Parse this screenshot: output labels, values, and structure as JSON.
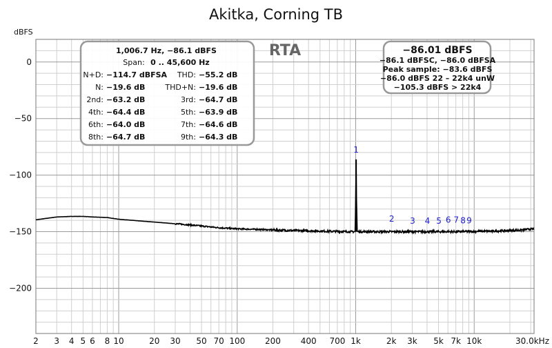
{
  "chart_data": {
    "type": "line",
    "title": "Akitka, Corning TB",
    "ylabel_unit": "dBFS",
    "x_scale": "log",
    "xlim": [
      2,
      32000
    ],
    "ylim": [
      -240,
      20
    ],
    "grid": true,
    "x_ticks": [
      {
        "value": 2,
        "label": "2"
      },
      {
        "value": 3,
        "label": "3"
      },
      {
        "value": 4,
        "label": "4"
      },
      {
        "value": 5,
        "label": "5"
      },
      {
        "value": 6,
        "label": "6"
      },
      {
        "value": 8,
        "label": "8"
      },
      {
        "value": 10,
        "label": "10"
      },
      {
        "value": 20,
        "label": "20"
      },
      {
        "value": 30,
        "label": "30"
      },
      {
        "value": 50,
        "label": "50"
      },
      {
        "value": 70,
        "label": "70"
      },
      {
        "value": 100,
        "label": "100"
      },
      {
        "value": 200,
        "label": "200"
      },
      {
        "value": 400,
        "label": "400"
      },
      {
        "value": 700,
        "label": "700"
      },
      {
        "value": 1000,
        "label": "1k"
      },
      {
        "value": 2000,
        "label": "2k"
      },
      {
        "value": 3000,
        "label": "3k"
      },
      {
        "value": 5000,
        "label": "5k"
      },
      {
        "value": 7000,
        "label": "7k"
      },
      {
        "value": 10000,
        "label": "10k"
      },
      {
        "value": 30000,
        "label": "30.0kHz"
      }
    ],
    "y_ticks": [
      {
        "value": 0,
        "label": "0"
      },
      {
        "value": -50,
        "label": "−50"
      },
      {
        "value": -100,
        "label": "−100"
      },
      {
        "value": -150,
        "label": "−150"
      },
      {
        "value": -200,
        "label": "−200"
      }
    ],
    "series": [
      {
        "x": [
          2,
          3,
          4,
          5,
          6,
          8,
          10,
          15,
          20,
          30,
          40,
          50,
          70,
          100,
          150,
          200,
          300,
          400,
          500,
          700,
          900,
          990,
          1000,
          1007,
          1015,
          1030,
          1100,
          1500,
          2000,
          3000,
          4000,
          5000,
          7000,
          10000,
          15000,
          20000,
          25000,
          32000
        ],
        "y": [
          -139.5,
          -137,
          -136.5,
          -136.5,
          -137,
          -137.5,
          -139,
          -140.5,
          -141.5,
          -143,
          -144,
          -145,
          -146.5,
          -147.5,
          -148,
          -148.5,
          -149,
          -149.2,
          -149.5,
          -149.8,
          -150,
          -150,
          -120,
          -86.1,
          -120,
          -150,
          -150,
          -150,
          -150,
          -150,
          -150,
          -150,
          -150,
          -149.8,
          -149.5,
          -149,
          -148.5,
          -147.5
        ]
      }
    ],
    "annotations": [
      {
        "label": "1",
        "x": 1006.7,
        "y": -80
      },
      {
        "label": "2",
        "x": 2013.4,
        "y": -141
      },
      {
        "label": "3",
        "x": 3020.1,
        "y": -143
      },
      {
        "label": "4",
        "x": 4026.8,
        "y": -143
      },
      {
        "label": "5",
        "x": 5033.5,
        "y": -143
      },
      {
        "label": "6",
        "x": 6040.2,
        "y": -142
      },
      {
        "label": "7",
        "x": 7046.9,
        "y": -142
      },
      {
        "label": "8",
        "x": 8053.6,
        "y": -142.5
      },
      {
        "label": "9",
        "x": 9060.3,
        "y": -142.5
      }
    ]
  },
  "info_box": {
    "header": "1,006.7 Hz, −86.1 dBFS",
    "span_label": "Span:",
    "span_value": "0 .. 45,600 Hz",
    "rows": [
      {
        "l_label": "N+D:",
        "l_value": "−114.7 dBFSA",
        "r_label": "THD:",
        "r_value": "−55.2 dB"
      },
      {
        "l_label": "N:",
        "l_value": "−19.6 dB",
        "r_label": "THD+N:",
        "r_value": "−19.6 dB"
      },
      {
        "l_label": "2nd:",
        "l_value": "−63.2 dB",
        "r_label": "3rd:",
        "r_value": "−64.7 dB"
      },
      {
        "l_label": "4th:",
        "l_value": "−64.4 dB",
        "r_label": "5th:",
        "r_value": "−63.9 dB"
      },
      {
        "l_label": "6th:",
        "l_value": "−64.0 dB",
        "r_label": "7th:",
        "r_value": "−64.6 dB"
      },
      {
        "l_label": "8th:",
        "l_value": "−64.7 dB",
        "r_label": "9th:",
        "r_value": "−64.3 dB"
      }
    ]
  },
  "rta_label": "RTA",
  "level_box": {
    "main": "−86.01 dBFS",
    "lines": [
      "−86.1 dBFSC, −86.0 dBFSA",
      "Peak sample: −83.6 dBFS",
      "−86.0 dBFS 22 – 22k4 unW",
      "−105.3 dBFS > 22k4"
    ]
  }
}
